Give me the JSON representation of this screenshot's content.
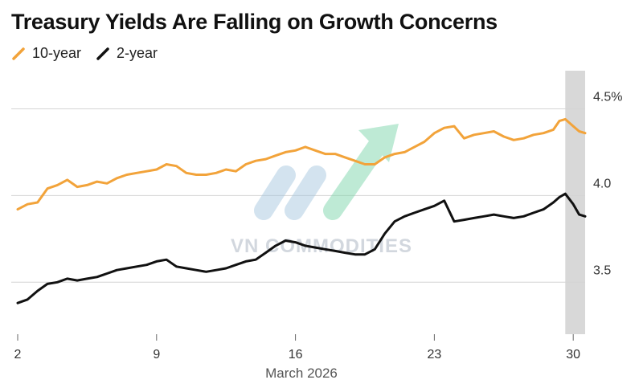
{
  "chart_data": {
    "type": "line",
    "title": "Treasury Yields Are Falling on Growth Concerns",
    "xlabel": "March 2026",
    "ylabel": "",
    "x_ticks": [
      2,
      9,
      16,
      23,
      30
    ],
    "xlim": [
      2,
      30.6
    ],
    "y_ticks": [
      3.5,
      4.0,
      4.5
    ],
    "y_tick_labels": [
      "3.5",
      "4.0",
      "4.5%"
    ],
    "ylim": [
      3.2,
      4.72
    ],
    "grid": true,
    "legend_position": "top-left",
    "shaded_region": [
      29.6,
      30.6
    ],
    "series": [
      {
        "name": "10-year",
        "color": "#f2a33a",
        "x": [
          2,
          2.5,
          3,
          3.5,
          4,
          4.5,
          5,
          5.5,
          6,
          6.5,
          7,
          7.5,
          8,
          8.5,
          9,
          9.5,
          10,
          10.5,
          11,
          11.5,
          12,
          12.5,
          13,
          13.5,
          14,
          14.5,
          15,
          15.5,
          16,
          16.5,
          17,
          17.5,
          18,
          18.5,
          19,
          19.5,
          20,
          20.5,
          21,
          21.5,
          22,
          22.5,
          23,
          23.5,
          24,
          24.5,
          25,
          25.5,
          26,
          26.5,
          27,
          27.5,
          28,
          28.5,
          29,
          29.3,
          29.6,
          30,
          30.3,
          30.6
        ],
        "values": [
          3.92,
          3.95,
          3.96,
          4.04,
          4.06,
          4.09,
          4.05,
          4.06,
          4.08,
          4.07,
          4.1,
          4.12,
          4.13,
          4.14,
          4.15,
          4.18,
          4.17,
          4.13,
          4.12,
          4.12,
          4.13,
          4.15,
          4.14,
          4.18,
          4.2,
          4.21,
          4.23,
          4.25,
          4.26,
          4.28,
          4.26,
          4.24,
          4.24,
          4.22,
          4.2,
          4.18,
          4.18,
          4.22,
          4.24,
          4.25,
          4.28,
          4.31,
          4.36,
          4.39,
          4.4,
          4.33,
          4.35,
          4.36,
          4.37,
          4.34,
          4.32,
          4.33,
          4.35,
          4.36,
          4.38,
          4.43,
          4.44,
          4.4,
          4.37,
          4.36
        ]
      },
      {
        "name": "2-year",
        "color": "#111111",
        "x": [
          2,
          2.5,
          3,
          3.5,
          4,
          4.5,
          5,
          5.5,
          6,
          6.5,
          7,
          7.5,
          8,
          8.5,
          9,
          9.5,
          10,
          10.5,
          11,
          11.5,
          12,
          12.5,
          13,
          13.5,
          14,
          14.5,
          15,
          15.5,
          16,
          16.5,
          17,
          17.5,
          18,
          18.5,
          19,
          19.5,
          20,
          20.5,
          21,
          21.5,
          22,
          22.5,
          23,
          23.5,
          24,
          24.5,
          25,
          25.5,
          26,
          26.5,
          27,
          27.5,
          28,
          28.5,
          29,
          29.3,
          29.6,
          30,
          30.3,
          30.6
        ],
        "values": [
          3.38,
          3.4,
          3.45,
          3.49,
          3.5,
          3.52,
          3.51,
          3.52,
          3.53,
          3.55,
          3.57,
          3.58,
          3.59,
          3.6,
          3.62,
          3.63,
          3.59,
          3.58,
          3.57,
          3.56,
          3.57,
          3.58,
          3.6,
          3.62,
          3.63,
          3.67,
          3.71,
          3.74,
          3.73,
          3.71,
          3.7,
          3.69,
          3.68,
          3.67,
          3.66,
          3.66,
          3.69,
          3.78,
          3.85,
          3.88,
          3.9,
          3.92,
          3.94,
          3.97,
          3.85,
          3.86,
          3.87,
          3.88,
          3.89,
          3.88,
          3.87,
          3.88,
          3.9,
          3.92,
          3.96,
          3.99,
          4.01,
          3.95,
          3.89,
          3.88
        ]
      }
    ]
  },
  "watermark": {
    "text": "VN COMMODITIES",
    "icon": "vn-commodities-logo-icon",
    "colors": [
      "#7fd6ad",
      "#a8c8e0"
    ]
  },
  "colors": {
    "grid": "#d4d4d4",
    "shade": "#d8d8d8",
    "axis_text": "#333333"
  }
}
